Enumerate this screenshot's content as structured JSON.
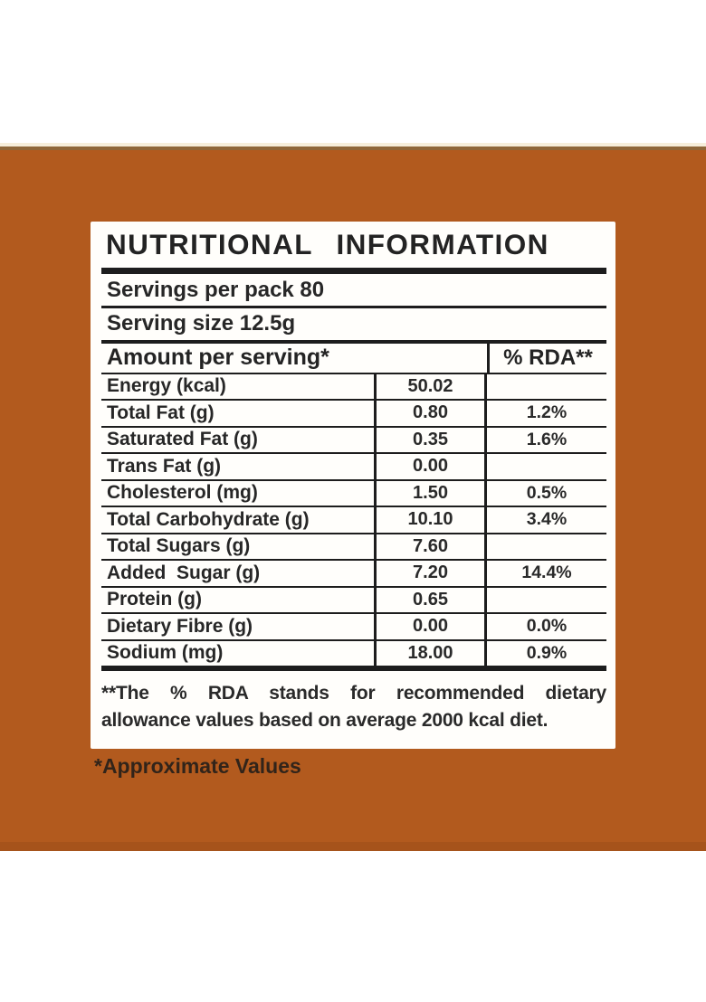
{
  "colors": {
    "band": "#b25a1e",
    "band_edge_top": "#8f673a",
    "band_edge_bottom": "#a6531b",
    "rule": "#1d1d1d",
    "text": "#242424"
  },
  "label": {
    "title": "NUTRITIONAL INFORMATION",
    "servings_per_pack": "Servings per pack 80",
    "serving_size": "Serving size 12.5g",
    "columns": {
      "amount_header": "Amount per serving*",
      "rda_header": "% RDA**"
    },
    "rows": [
      {
        "name": "Energy (kcal)",
        "amount": "50.02",
        "rda": ""
      },
      {
        "name": "Total Fat (g)",
        "amount": "0.80",
        "rda": "1.2%"
      },
      {
        "name": "Saturated Fat (g)",
        "amount": "0.35",
        "rda": "1.6%"
      },
      {
        "name": "Trans Fat (g)",
        "amount": "0.00",
        "rda": ""
      },
      {
        "name": "Cholesterol (mg)",
        "amount": "1.50",
        "rda": "0.5%"
      },
      {
        "name": "Total Carbohydrate (g)",
        "amount": "10.10",
        "rda": "3.4%"
      },
      {
        "name": "Total Sugars (g)",
        "amount": "7.60",
        "rda": ""
      },
      {
        "name": "Added  Sugar (g)",
        "amount": "7.20",
        "rda": "14.4%"
      },
      {
        "name": "Protein (g)",
        "amount": "0.65",
        "rda": ""
      },
      {
        "name": "Dietary Fibre (g)",
        "amount": "0.00",
        "rda": "0.0%"
      },
      {
        "name": "Sodium (mg)",
        "amount": "18.00",
        "rda": "0.9%"
      }
    ],
    "footnote_line1": "**The % RDA stands for recommended dietary",
    "footnote_line2": "allowance values based on average 2000 kcal diet."
  },
  "approximate_values_note": "*Approximate Values"
}
